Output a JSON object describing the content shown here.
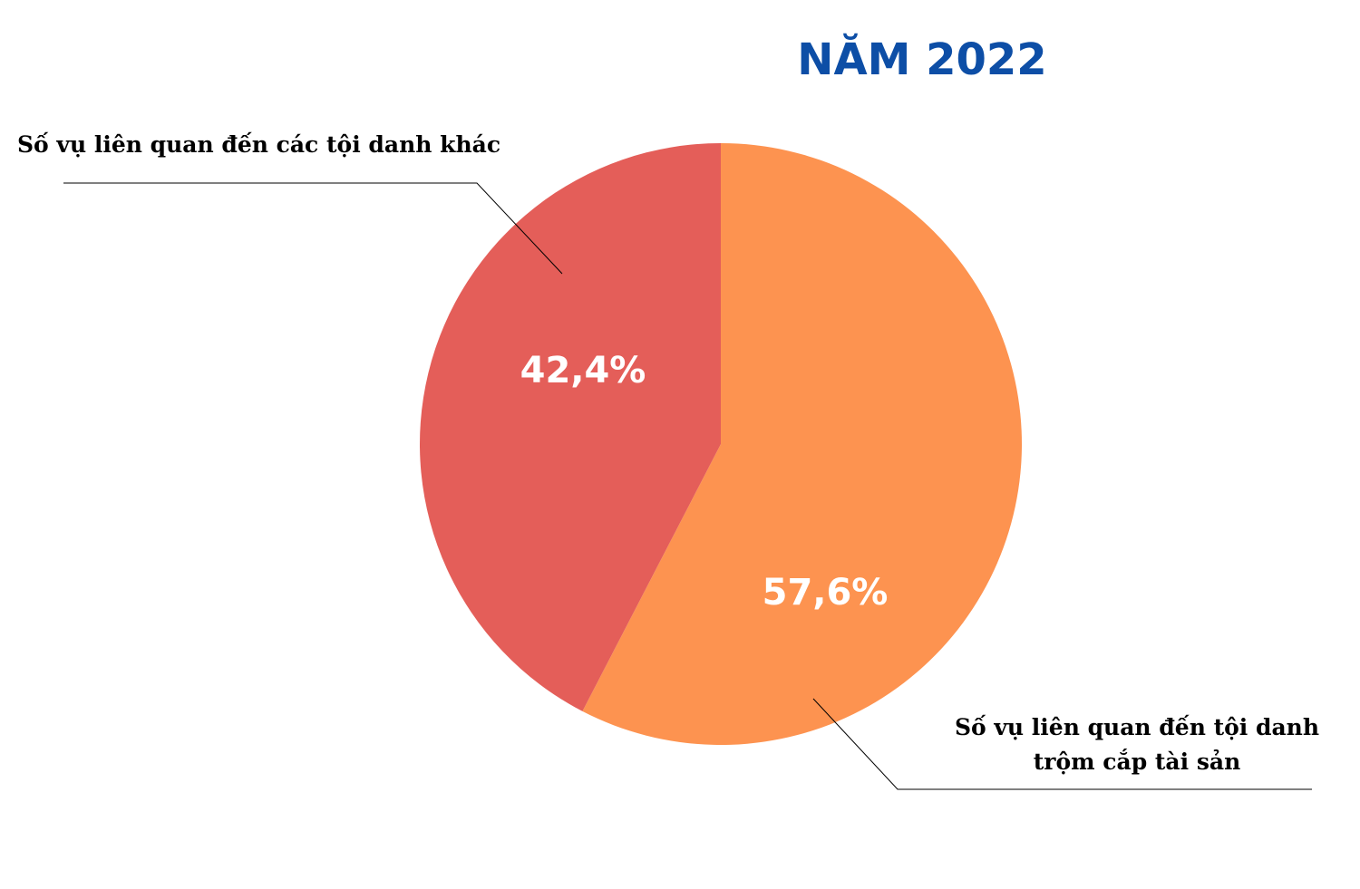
{
  "chart_data": {
    "type": "pie",
    "title": "NĂM 2022",
    "title_color": "#0d4ea6",
    "slices": [
      {
        "name": "Số vụ liên quan đến tội danh trộm cắp tài sản",
        "label_lines": [
          "Số vụ liên quan đến tội danh",
          "trộm cắp tài sản"
        ],
        "value": 57.6,
        "display": "57,6%",
        "color": "#fd9350"
      },
      {
        "name": "Số vụ liên quan đến các tội danh khác",
        "label_lines": [
          "Số vụ liên quan đến các tội danh khác"
        ],
        "value": 42.4,
        "display": "42,4%",
        "color": "#e45e59"
      }
    ]
  }
}
